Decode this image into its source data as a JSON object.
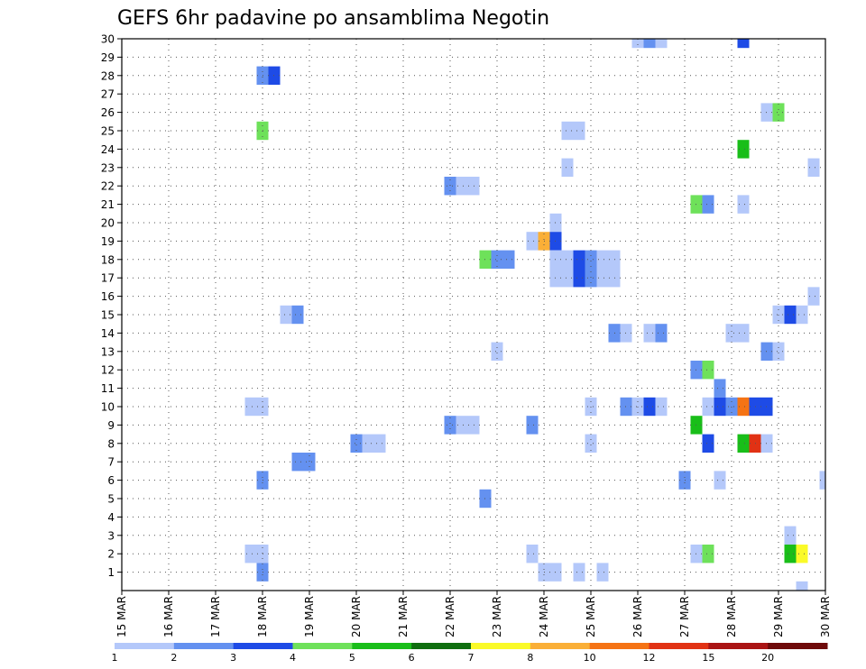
{
  "chart_data": {
    "type": "heatmap",
    "title": "GEFS 6hr padavine po ansamblima Negotin",
    "y_categories": [
      "1",
      "2",
      "3",
      "4",
      "5",
      "6",
      "7",
      "8",
      "9",
      "10",
      "11",
      "12",
      "13",
      "14",
      "15",
      "16",
      "17",
      "18",
      "19",
      "20",
      "21",
      "22",
      "23",
      "24",
      "25",
      "26",
      "27",
      "28",
      "29",
      "30"
    ],
    "x_range_hours": [
      0,
      360
    ],
    "x_ticks": [
      {
        "hour": 0,
        "label": "15 MAR"
      },
      {
        "hour": 24,
        "label": "16 MAR"
      },
      {
        "hour": 48,
        "label": "17 MAR"
      },
      {
        "hour": 72,
        "label": "18 MAR"
      },
      {
        "hour": 96,
        "label": "19 MAR"
      },
      {
        "hour": 120,
        "label": "20 MAR"
      },
      {
        "hour": 144,
        "label": "21 MAR"
      },
      {
        "hour": 168,
        "label": "22 MAR"
      },
      {
        "hour": 192,
        "label": "23 MAR"
      },
      {
        "hour": 216,
        "label": "24 MAR"
      },
      {
        "hour": 240,
        "label": "25 MAR"
      },
      {
        "hour": 264,
        "label": "26 MAR"
      },
      {
        "hour": 288,
        "label": "27 MAR"
      },
      {
        "hour": 312,
        "label": "28 MAR"
      },
      {
        "hour": 336,
        "label": "29 MAR"
      },
      {
        "hour": 360,
        "label": "30 MAR"
      }
    ],
    "grid": true,
    "step_hours": 6,
    "legend": {
      "labels": [
        "1",
        "2",
        "3",
        "4",
        "5",
        "6",
        "7",
        "8",
        "10",
        "12",
        "15",
        "20"
      ],
      "colors": [
        "#b4c8fa",
        "#6491f0",
        "#1e4be6",
        "#6ee15a",
        "#19be19",
        "#0f6e0f",
        "#fafa28",
        "#faaf37",
        "#f57314",
        "#e13214",
        "#aa1414",
        "#6e0a0a"
      ]
    },
    "cells": [
      {
        "m": 30,
        "h": 264,
        "c": 0
      },
      {
        "m": 30,
        "h": 270,
        "c": 1
      },
      {
        "m": 30,
        "h": 276,
        "c": 0
      },
      {
        "m": 30,
        "h": 318,
        "c": 2
      },
      {
        "m": 28,
        "h": 72,
        "c": 1
      },
      {
        "m": 28,
        "h": 78,
        "c": 2
      },
      {
        "m": 26,
        "h": 330,
        "c": 0
      },
      {
        "m": 26,
        "h": 336,
        "c": 3
      },
      {
        "m": 25,
        "h": 72,
        "c": 3
      },
      {
        "m": 25,
        "h": 228,
        "c": 0
      },
      {
        "m": 25,
        "h": 234,
        "c": 0
      },
      {
        "m": 24,
        "h": 318,
        "c": 4
      },
      {
        "m": 23,
        "h": 228,
        "c": 0
      },
      {
        "m": 23,
        "h": 354,
        "c": 0
      },
      {
        "m": 22,
        "h": 168,
        "c": 1
      },
      {
        "m": 22,
        "h": 174,
        "c": 0
      },
      {
        "m": 22,
        "h": 180,
        "c": 0
      },
      {
        "m": 21,
        "h": 294,
        "c": 3
      },
      {
        "m": 21,
        "h": 300,
        "c": 1
      },
      {
        "m": 21,
        "h": 318,
        "c": 0
      },
      {
        "m": 20,
        "h": 222,
        "c": 0
      },
      {
        "m": 19,
        "h": 210,
        "c": 0
      },
      {
        "m": 19,
        "h": 216,
        "c": 7
      },
      {
        "m": 19,
        "h": 222,
        "c": 2
      },
      {
        "m": 18,
        "h": 186,
        "c": 3
      },
      {
        "m": 18,
        "h": 192,
        "c": 1
      },
      {
        "m": 18,
        "h": 198,
        "c": 1
      },
      {
        "m": 18,
        "h": 222,
        "c": 0
      },
      {
        "m": 18,
        "h": 228,
        "c": 0
      },
      {
        "m": 18,
        "h": 234,
        "c": 2
      },
      {
        "m": 18,
        "h": 240,
        "c": 1
      },
      {
        "m": 18,
        "h": 246,
        "c": 0
      },
      {
        "m": 18,
        "h": 252,
        "c": 0
      },
      {
        "m": 17,
        "h": 222,
        "c": 0
      },
      {
        "m": 17,
        "h": 228,
        "c": 0
      },
      {
        "m": 17,
        "h": 234,
        "c": 2
      },
      {
        "m": 17,
        "h": 240,
        "c": 1
      },
      {
        "m": 17,
        "h": 246,
        "c": 0
      },
      {
        "m": 17,
        "h": 252,
        "c": 0
      },
      {
        "m": 16,
        "h": 354,
        "c": 0
      },
      {
        "m": 15,
        "h": 84,
        "c": 0
      },
      {
        "m": 15,
        "h": 90,
        "c": 1
      },
      {
        "m": 15,
        "h": 336,
        "c": 0
      },
      {
        "m": 15,
        "h": 342,
        "c": 2
      },
      {
        "m": 15,
        "h": 348,
        "c": 0
      },
      {
        "m": 14,
        "h": 252,
        "c": 1
      },
      {
        "m": 14,
        "h": 258,
        "c": 0
      },
      {
        "m": 14,
        "h": 270,
        "c": 0
      },
      {
        "m": 14,
        "h": 276,
        "c": 1
      },
      {
        "m": 14,
        "h": 312,
        "c": 0
      },
      {
        "m": 14,
        "h": 318,
        "c": 0
      },
      {
        "m": 13,
        "h": 192,
        "c": 0
      },
      {
        "m": 13,
        "h": 330,
        "c": 1
      },
      {
        "m": 13,
        "h": 336,
        "c": 0
      },
      {
        "m": 12,
        "h": 294,
        "c": 1
      },
      {
        "m": 12,
        "h": 300,
        "c": 3
      },
      {
        "m": 11,
        "h": 306,
        "c": 1
      },
      {
        "m": 10,
        "h": 66,
        "c": 0
      },
      {
        "m": 10,
        "h": 72,
        "c": 0
      },
      {
        "m": 10,
        "h": 240,
        "c": 0
      },
      {
        "m": 10,
        "h": 258,
        "c": 1
      },
      {
        "m": 10,
        "h": 264,
        "c": 0
      },
      {
        "m": 10,
        "h": 270,
        "c": 2
      },
      {
        "m": 10,
        "h": 276,
        "c": 0
      },
      {
        "m": 10,
        "h": 300,
        "c": 0
      },
      {
        "m": 10,
        "h": 306,
        "c": 2
      },
      {
        "m": 10,
        "h": 312,
        "c": 1
      },
      {
        "m": 10,
        "h": 318,
        "c": 8
      },
      {
        "m": 10,
        "h": 324,
        "c": 2
      },
      {
        "m": 10,
        "h": 330,
        "c": 2
      },
      {
        "m": 9,
        "h": 168,
        "c": 1
      },
      {
        "m": 9,
        "h": 174,
        "c": 0
      },
      {
        "m": 9,
        "h": 180,
        "c": 0
      },
      {
        "m": 9,
        "h": 210,
        "c": 1
      },
      {
        "m": 9,
        "h": 294,
        "c": 4
      },
      {
        "m": 8,
        "h": 120,
        "c": 1
      },
      {
        "m": 8,
        "h": 126,
        "c": 0
      },
      {
        "m": 8,
        "h": 132,
        "c": 0
      },
      {
        "m": 8,
        "h": 240,
        "c": 0
      },
      {
        "m": 8,
        "h": 300,
        "c": 2
      },
      {
        "m": 8,
        "h": 318,
        "c": 4
      },
      {
        "m": 8,
        "h": 324,
        "c": 9
      },
      {
        "m": 8,
        "h": 330,
        "c": 0
      },
      {
        "m": 7,
        "h": 90,
        "c": 1
      },
      {
        "m": 7,
        "h": 96,
        "c": 1
      },
      {
        "m": 6,
        "h": 72,
        "c": 1
      },
      {
        "m": 6,
        "h": 288,
        "c": 1
      },
      {
        "m": 6,
        "h": 306,
        "c": 0
      },
      {
        "m": 6,
        "h": 360,
        "c": 0
      },
      {
        "m": 5,
        "h": 186,
        "c": 1
      },
      {
        "m": 3,
        "h": 342,
        "c": 0
      },
      {
        "m": 2,
        "h": 66,
        "c": 0
      },
      {
        "m": 2,
        "h": 72,
        "c": 0
      },
      {
        "m": 2,
        "h": 210,
        "c": 0
      },
      {
        "m": 2,
        "h": 294,
        "c": 0
      },
      {
        "m": 2,
        "h": 300,
        "c": 3
      },
      {
        "m": 2,
        "h": 342,
        "c": 4
      },
      {
        "m": 2,
        "h": 348,
        "c": 6
      },
      {
        "m": 1,
        "h": 72,
        "c": 1
      },
      {
        "m": 1,
        "h": 216,
        "c": 0
      },
      {
        "m": 1,
        "h": 222,
        "c": 0
      },
      {
        "m": 1,
        "h": 234,
        "c": 0
      },
      {
        "m": 1,
        "h": 246,
        "c": 0
      },
      {
        "m": 0,
        "h": 348,
        "c": 0
      }
    ]
  }
}
